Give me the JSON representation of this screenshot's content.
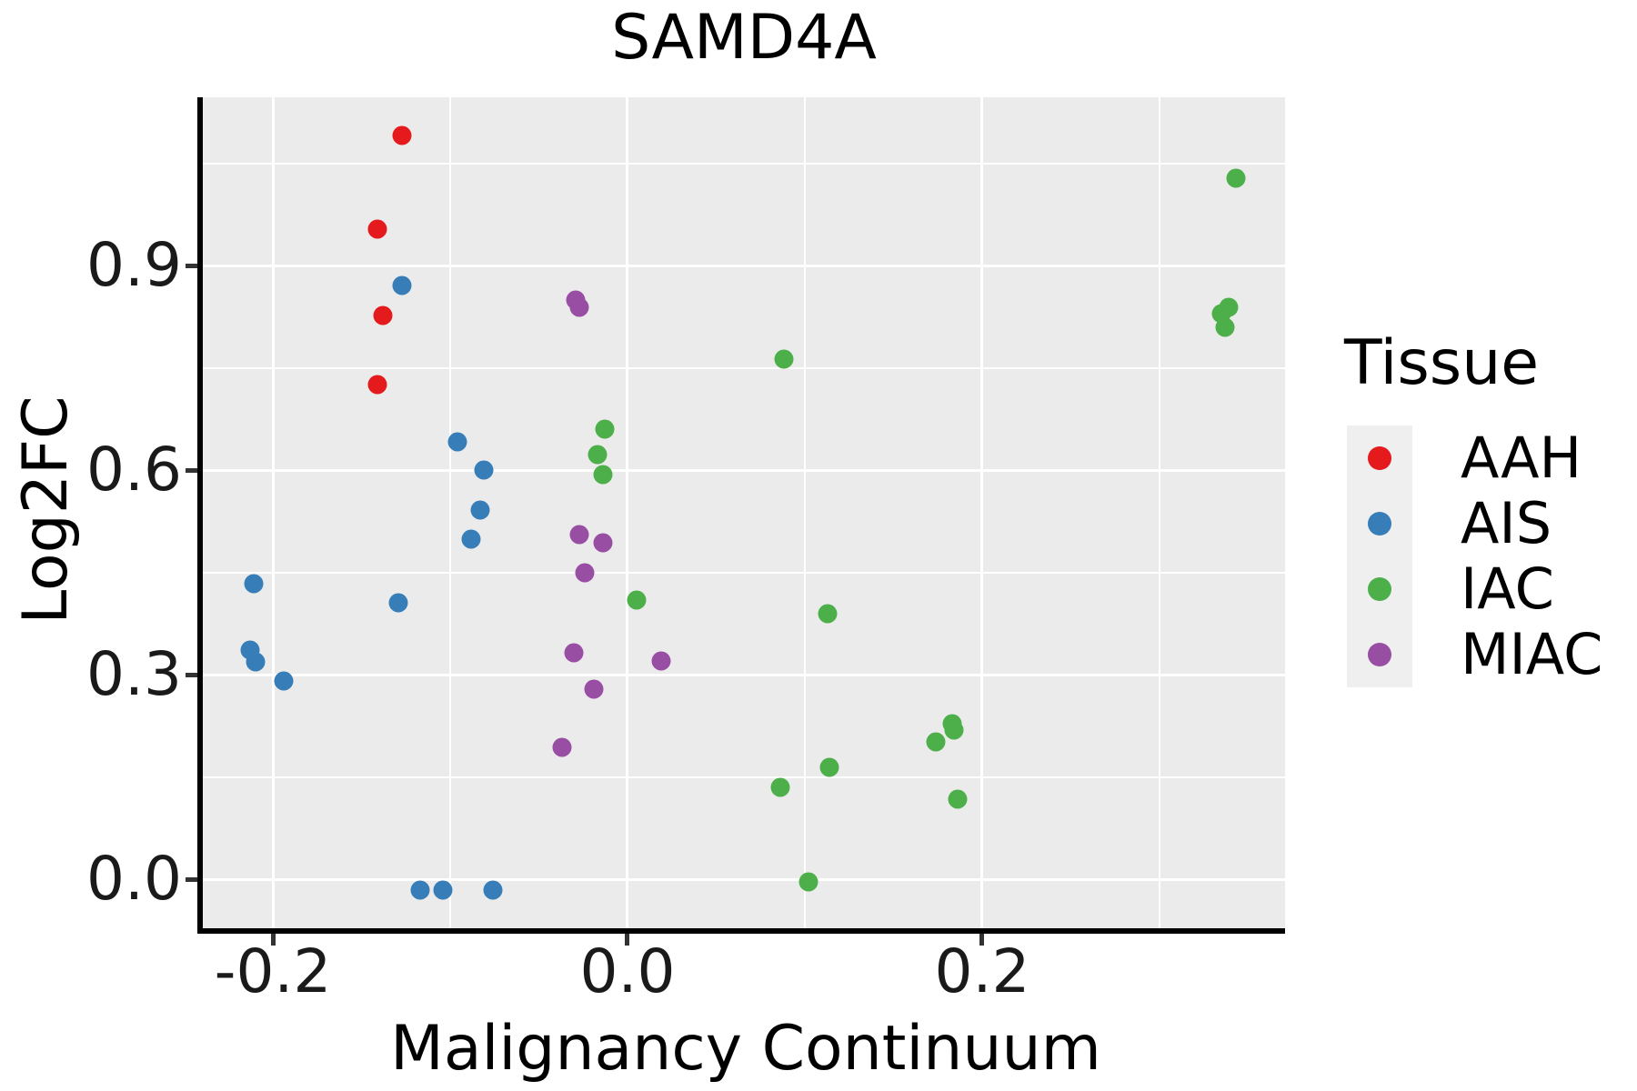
{
  "title": "SAMD4A",
  "x_axis": {
    "label": "Malignancy Continuum",
    "ticks": [
      {
        "value": -0.2,
        "label": "-0.2"
      },
      {
        "value": 0.0,
        "label": "0.0"
      },
      {
        "value": 0.2,
        "label": "0.2"
      }
    ],
    "minor_ticks": [
      -0.1,
      0.1,
      0.3
    ],
    "range": [
      -0.2395,
      0.3708
    ]
  },
  "y_axis": {
    "label": "Log2FC",
    "ticks": [
      {
        "value": 0.0,
        "label": "0.0"
      },
      {
        "value": 0.3,
        "label": "0.3"
      },
      {
        "value": 0.6,
        "label": "0.6"
      },
      {
        "value": 0.9,
        "label": "0.9"
      }
    ],
    "minor_ticks": [
      0.15,
      0.45,
      0.75,
      1.05
    ],
    "range": [
      -0.072,
      1.1467
    ]
  },
  "legend": {
    "title": "Tissue",
    "entries": [
      {
        "label": "AAH",
        "color": "#E41A1C"
      },
      {
        "label": "AIS",
        "color": "#377EB8"
      },
      {
        "label": "IAC",
        "color": "#4DAF4A"
      },
      {
        "label": "MIAC",
        "color": "#984EA3"
      }
    ]
  },
  "colors": {
    "panel_background": "#EBEBEB",
    "gridline": "#FFFFFF",
    "axis_line": "#000000",
    "tick_mark": "#333333",
    "legend_key_background": "#EFEFEF"
  },
  "chart_data": {
    "type": "scatter",
    "title": "SAMD4A",
    "xlabel": "Malignancy Continuum",
    "ylabel": "Log2FC",
    "legend_title": "Tissue",
    "xlim": [
      -0.24,
      0.37
    ],
    "ylim": [
      -0.07,
      1.15
    ],
    "grid": true,
    "legend_position": "right",
    "series": [
      {
        "name": "AAH",
        "color": "#E41A1C",
        "points": [
          [
            -0.127,
            1.091
          ],
          [
            -0.141,
            0.953
          ],
          [
            -0.138,
            0.827
          ],
          [
            -0.141,
            0.725
          ]
        ]
      },
      {
        "name": "AIS",
        "color": "#377EB8",
        "points": [
          [
            -0.127,
            0.871
          ],
          [
            -0.096,
            0.641
          ],
          [
            -0.081,
            0.6
          ],
          [
            -0.083,
            0.541
          ],
          [
            -0.088,
            0.499
          ],
          [
            -0.211,
            0.433
          ],
          [
            -0.129,
            0.405
          ],
          [
            -0.213,
            0.336
          ],
          [
            -0.21,
            0.319
          ],
          [
            -0.194,
            0.291
          ],
          [
            -0.117,
            -0.016
          ],
          [
            -0.104,
            -0.016
          ],
          [
            -0.076,
            -0.016
          ]
        ]
      },
      {
        "name": "IAC",
        "color": "#4DAF4A",
        "points": [
          [
            0.343,
            1.028
          ],
          [
            0.339,
            0.839
          ],
          [
            0.335,
            0.83
          ],
          [
            0.337,
            0.809
          ],
          [
            0.088,
            0.763
          ],
          [
            -0.013,
            0.66
          ],
          [
            -0.017,
            0.623
          ],
          [
            -0.014,
            0.593
          ],
          [
            0.005,
            0.409
          ],
          [
            0.113,
            0.389
          ],
          [
            0.183,
            0.228
          ],
          [
            0.184,
            0.219
          ],
          [
            0.174,
            0.201
          ],
          [
            0.114,
            0.164
          ],
          [
            0.086,
            0.135
          ],
          [
            0.186,
            0.117
          ],
          [
            0.102,
            -0.004
          ]
        ]
      },
      {
        "name": "MIAC",
        "color": "#984EA3",
        "points": [
          [
            -0.029,
            0.849
          ],
          [
            -0.027,
            0.839
          ],
          [
            -0.027,
            0.505
          ],
          [
            -0.014,
            0.493
          ],
          [
            -0.024,
            0.449
          ],
          [
            -0.03,
            0.332
          ],
          [
            0.019,
            0.32
          ],
          [
            -0.019,
            0.279
          ],
          [
            -0.037,
            0.193
          ]
        ]
      }
    ]
  }
}
